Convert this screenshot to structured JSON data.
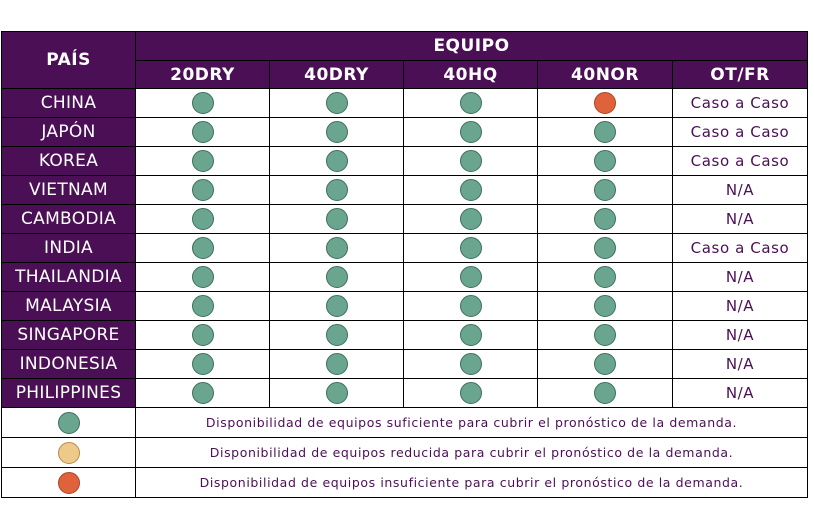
{
  "header": {
    "country_label": "PAÍS",
    "group_label": "EQUIPO",
    "columns": [
      "20DRY",
      "40DRY",
      "40HQ",
      "40NOR",
      "OT/FR"
    ]
  },
  "colors": {
    "header_bg": "#4b0f55",
    "green": "#6aa58f",
    "yellow": "#efc98a",
    "red": "#e0623a"
  },
  "rows": [
    {
      "country": "CHINA",
      "status": [
        "green",
        "green",
        "green",
        "red"
      ],
      "otfr": "Caso a Caso"
    },
    {
      "country": "JAPÓN",
      "status": [
        "green",
        "green",
        "green",
        "green"
      ],
      "otfr": "Caso a Caso"
    },
    {
      "country": "KOREA",
      "status": [
        "green",
        "green",
        "green",
        "green"
      ],
      "otfr": "Caso a Caso"
    },
    {
      "country": "VIETNAM",
      "status": [
        "green",
        "green",
        "green",
        "green"
      ],
      "otfr": "N/A"
    },
    {
      "country": "CAMBODIA",
      "status": [
        "green",
        "green",
        "green",
        "green"
      ],
      "otfr": "N/A"
    },
    {
      "country": "INDIA",
      "status": [
        "green",
        "green",
        "green",
        "green"
      ],
      "otfr": "Caso a Caso"
    },
    {
      "country": "THAILANDIA",
      "status": [
        "green",
        "green",
        "green",
        "green"
      ],
      "otfr": "N/A"
    },
    {
      "country": "MALAYSIA",
      "status": [
        "green",
        "green",
        "green",
        "green"
      ],
      "otfr": "N/A"
    },
    {
      "country": "SINGAPORE",
      "status": [
        "green",
        "green",
        "green",
        "green"
      ],
      "otfr": "N/A"
    },
    {
      "country": "INDONESIA",
      "status": [
        "green",
        "green",
        "green",
        "green"
      ],
      "otfr": "N/A"
    },
    {
      "country": "PHILIPPINES",
      "status": [
        "green",
        "green",
        "green",
        "green"
      ],
      "otfr": "N/A"
    }
  ],
  "legend": [
    {
      "status": "green",
      "text": "Disponibilidad de equipos suficiente para cubrir el pronóstico de la demanda."
    },
    {
      "status": "yellow",
      "text": "Disponibilidad de equipos reducida para cubrir el pronóstico de la demanda."
    },
    {
      "status": "red",
      "text": "Disponibilidad de equipos insuficiente para cubrir el pronóstico de la demanda."
    }
  ]
}
